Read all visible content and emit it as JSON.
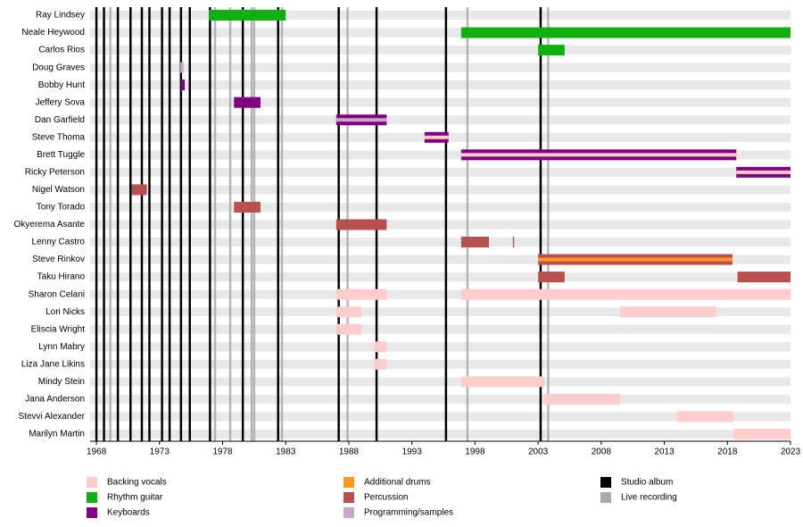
{
  "chart_data": {
    "type": "timeline",
    "xlim": [
      1967.5,
      2023
    ],
    "xticks": [
      1968,
      1973,
      1978,
      1983,
      1988,
      1993,
      1998,
      2003,
      2008,
      2013,
      2018,
      2023
    ],
    "roles": [
      {
        "name": "Backing vocals",
        "color": "#ffcccc"
      },
      {
        "name": "Rhythm guitar",
        "color": "#11b011"
      },
      {
        "name": "Keyboards",
        "color": "#800080"
      },
      {
        "name": "Additional drums",
        "color": "#ff9922"
      },
      {
        "name": "Percussion",
        "color": "#b85050"
      },
      {
        "name": "Programming/samples",
        "color": "#c8a8c8"
      }
    ],
    "events": [
      {
        "name": "Studio album",
        "color": "#000000",
        "years": [
          1968.0,
          1968.6,
          1969.7,
          1970.7,
          1971.6,
          1972.2,
          1973.2,
          1973.8,
          1974.7,
          1975.4,
          1977.0,
          1979.6,
          1982.4,
          1987.2,
          1990.2,
          1995.7,
          2003.2
        ]
      },
      {
        "name": "Live recording",
        "color": "#aaaaaa",
        "years": [
          1969.1,
          1977.4,
          1978.6,
          1980.3,
          1980.5,
          1982.7,
          1987.9,
          1997.4,
          2003.8
        ]
      }
    ],
    "members": [
      {
        "name": "Ray Lindsey",
        "spans": [
          {
            "start": 1976.9,
            "end": 1983.0,
            "role": 1
          }
        ]
      },
      {
        "name": "Neale Heywood",
        "spans": [
          {
            "start": 1996.9,
            "end": 2023,
            "role": 1
          }
        ]
      },
      {
        "name": "Carlos Rios",
        "spans": [
          {
            "start": 2003.0,
            "end": 2005.1,
            "role": 1
          }
        ]
      },
      {
        "name": "Doug Graves",
        "spans": [
          {
            "start": 1974.65,
            "end": 1974.9,
            "role": 5
          }
        ]
      },
      {
        "name": "Bobby Hunt",
        "spans": [
          {
            "start": 1974.7,
            "end": 1975.0,
            "role": 2
          }
        ]
      },
      {
        "name": "Jeffery Sova",
        "spans": [
          {
            "start": 1978.9,
            "end": 1981.0,
            "role": 2
          }
        ]
      },
      {
        "name": "Dan Garfield",
        "spans": [
          {
            "start": 1987.0,
            "end": 1991.0,
            "role": 2,
            "inner": 5
          }
        ]
      },
      {
        "name": "Steve Thoma",
        "spans": [
          {
            "start": 1994.0,
            "end": 1995.9,
            "role": 2,
            "inner": 0
          }
        ]
      },
      {
        "name": "Brett Tuggle",
        "spans": [
          {
            "start": 1996.9,
            "end": 2018.7,
            "role": 2,
            "inner": 0
          }
        ]
      },
      {
        "name": "Ricky Peterson",
        "spans": [
          {
            "start": 2018.7,
            "end": 2023,
            "role": 2,
            "inner": 0
          }
        ]
      },
      {
        "name": "Nigel Watson",
        "spans": [
          {
            "start": 1970.8,
            "end": 1972.0,
            "role": 4
          }
        ]
      },
      {
        "name": "Tony Torado",
        "spans": [
          {
            "start": 1978.9,
            "end": 1981.0,
            "role": 4
          }
        ]
      },
      {
        "name": "Okyerema Asante",
        "spans": [
          {
            "start": 1987.0,
            "end": 1991.0,
            "role": 4
          }
        ]
      },
      {
        "name": "Lenny Castro",
        "spans": [
          {
            "start": 1996.9,
            "end": 1999.1,
            "role": 4
          },
          {
            "start": 2001.0,
            "end": 2001.1,
            "role": 4
          }
        ]
      },
      {
        "name": "Steve Rinkov",
        "spans": [
          {
            "start": 2003.0,
            "end": 2018.4,
            "role": 4,
            "inner": 3
          }
        ]
      },
      {
        "name": "Taku Hirano",
        "spans": [
          {
            "start": 2003.0,
            "end": 2005.1,
            "role": 4
          },
          {
            "start": 2018.8,
            "end": 2023,
            "role": 4
          }
        ]
      },
      {
        "name": "Sharon Celani",
        "spans": [
          {
            "start": 1987.0,
            "end": 1991.0,
            "role": 0
          },
          {
            "start": 1996.9,
            "end": 2023,
            "role": 0
          }
        ]
      },
      {
        "name": "Lori Nicks",
        "spans": [
          {
            "start": 1987.0,
            "end": 1989.0,
            "role": 0
          },
          {
            "start": 2009.5,
            "end": 2017.1,
            "role": 0
          }
        ]
      },
      {
        "name": "Eliscia Wright",
        "spans": [
          {
            "start": 1987.0,
            "end": 1989.0,
            "role": 0
          }
        ]
      },
      {
        "name": "Lynn Mabry",
        "spans": [
          {
            "start": 1990.0,
            "end": 1991.0,
            "role": 0
          }
        ]
      },
      {
        "name": "Liza Jane Likins",
        "spans": [
          {
            "start": 1990.0,
            "end": 1991.0,
            "role": 0
          }
        ]
      },
      {
        "name": "Mindy Stein",
        "spans": [
          {
            "start": 1996.9,
            "end": 2003.5,
            "role": 0
          }
        ]
      },
      {
        "name": "Jana Anderson",
        "spans": [
          {
            "start": 2003.5,
            "end": 2009.5,
            "role": 0
          }
        ]
      },
      {
        "name": "Stevvi Alexander",
        "spans": [
          {
            "start": 2014.0,
            "end": 2018.5,
            "role": 0
          }
        ]
      },
      {
        "name": "Marilyn Martin",
        "spans": [
          {
            "start": 2018.5,
            "end": 2023,
            "role": 0
          }
        ]
      }
    ]
  }
}
